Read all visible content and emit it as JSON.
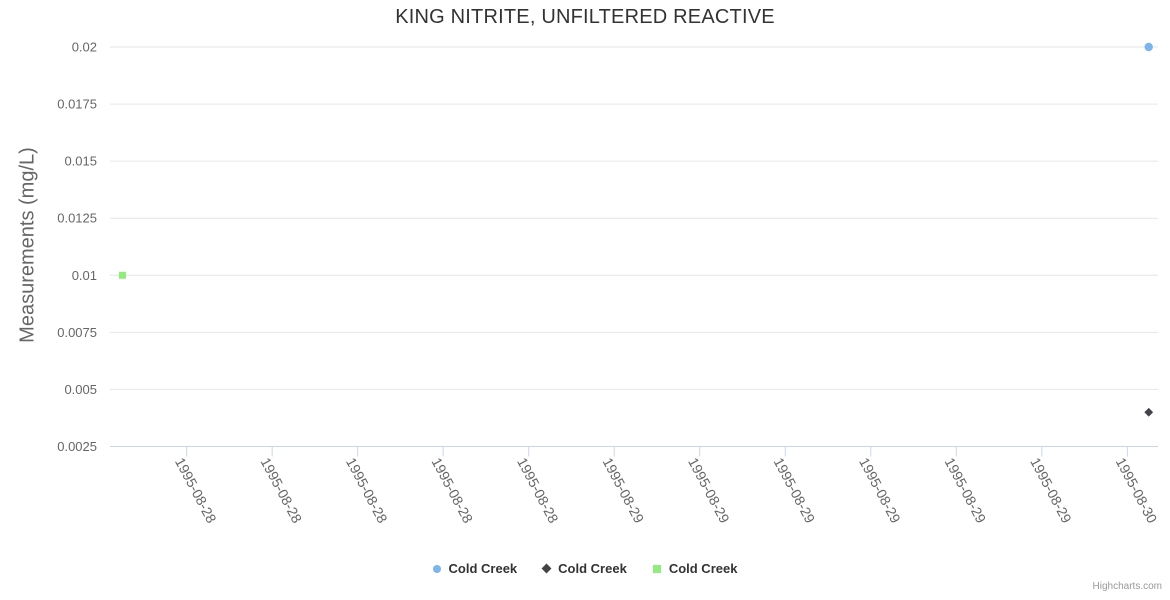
{
  "page": {
    "background": "#ffffff"
  },
  "credits": "Highcharts.com",
  "style": {
    "grid_color": "#e6e6e6",
    "axis_color": "#ccd6eb",
    "label_color": "#666666",
    "title_color": "#333333",
    "legend_text_color": "#333333",
    "credits_color": "#999999"
  },
  "chart_data": {
    "type": "scatter",
    "title": "KING NITRITE, UNFILTERED REACTIVE",
    "xlabel": "",
    "ylabel": "Measurements (mg/L)",
    "ylim": [
      0.0025,
      0.02
    ],
    "yticks": [
      0.0025,
      0.005,
      0.0075,
      0.01,
      0.0125,
      0.015,
      0.0175,
      0.02
    ],
    "ytick_labels": [
      "0.0025",
      "0.005",
      "0.0075",
      "0.01",
      "0.0125",
      "0.015",
      "0.0175",
      "0.02"
    ],
    "x_type": "datetime",
    "x_range": [
      "1995-08-28T00:25:00",
      "1995-08-30T01:26:00"
    ],
    "xticks": [
      {
        "t": "1995-08-28T04:00:00",
        "label": "1995-08-28"
      },
      {
        "t": "1995-08-28T08:00:00",
        "label": "1995-08-28"
      },
      {
        "t": "1995-08-28T12:00:00",
        "label": "1995-08-28"
      },
      {
        "t": "1995-08-28T16:00:00",
        "label": "1995-08-28"
      },
      {
        "t": "1995-08-28T20:00:00",
        "label": "1995-08-28"
      },
      {
        "t": "1995-08-29T00:00:00",
        "label": "1995-08-29"
      },
      {
        "t": "1995-08-29T04:00:00",
        "label": "1995-08-29"
      },
      {
        "t": "1995-08-29T08:00:00",
        "label": "1995-08-29"
      },
      {
        "t": "1995-08-29T12:00:00",
        "label": "1995-08-29"
      },
      {
        "t": "1995-08-29T16:00:00",
        "label": "1995-08-29"
      },
      {
        "t": "1995-08-29T20:00:00",
        "label": "1995-08-29"
      },
      {
        "t": "1995-08-30T00:00:00",
        "label": "1995-08-30"
      }
    ],
    "grid": "horizontal-only",
    "legend_position": "bottom-center",
    "series": [
      {
        "name": "Cold Creek",
        "marker": "circle",
        "color": "#7cb5ec",
        "points": [
          {
            "t": "1995-08-30T01:00:00",
            "y": 0.02
          }
        ]
      },
      {
        "name": "Cold Creek",
        "marker": "diamond",
        "color": "#434348",
        "points": [
          {
            "t": "1995-08-30T01:00:00",
            "y": 0.004
          }
        ]
      },
      {
        "name": "Cold Creek",
        "marker": "square",
        "color": "#90ed7d",
        "points": [
          {
            "t": "1995-08-28T01:00:00",
            "y": 0.01
          }
        ]
      }
    ]
  }
}
